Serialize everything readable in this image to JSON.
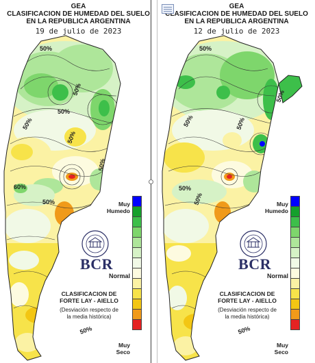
{
  "panels": [
    {
      "org": "GEA",
      "title_line1": "CLASIFICACION DE HUMEDAD DEL SUELO",
      "title_line2": "EN LA REPUBLICA ARGENTINA",
      "date": "19 de julio de 2023",
      "contour_labels": [
        "50%",
        "50%",
        "50%",
        "50%",
        "60%",
        "50%",
        "50%",
        "50%",
        "50%"
      ]
    },
    {
      "org": "GEA",
      "title_line1": "CLASIFICACION DE HUMEDAD DEL SUELO",
      "title_line2": "EN LA REPUBLICA ARGENTINA",
      "date": "12 de julio de 2023",
      "contour_labels": [
        "50%",
        "50%",
        "50%",
        "50%",
        "50%",
        "50%",
        "50%"
      ]
    }
  ],
  "legend": {
    "top_label_line1": "Muy",
    "top_label_line2": "Humedo",
    "mid_label": "Normal",
    "bottom_label_line1": "Muy",
    "bottom_label_line2": "Seco",
    "colors": [
      "#0000ff",
      "#15a02c",
      "#3dbf4a",
      "#7ed66c",
      "#aee69a",
      "#d6f2c6",
      "#f1f9e6",
      "#fdfbe0",
      "#fbf2a4",
      "#f7e34a",
      "#f3c613",
      "#f09a1a",
      "#e52222"
    ]
  },
  "brand": {
    "name": "BCR",
    "seal_text": "BOLSA DE COMERCIO DE ROSARIO"
  },
  "method": {
    "line1": "CLASIFICACION DE",
    "line2": "FORTE LAY - AIELLO",
    "note_line1": "(Desviación respecto de",
    "note_line2": "la media histórica)"
  },
  "icons": [
    "copy-icon",
    "bcr-seal-icon"
  ]
}
